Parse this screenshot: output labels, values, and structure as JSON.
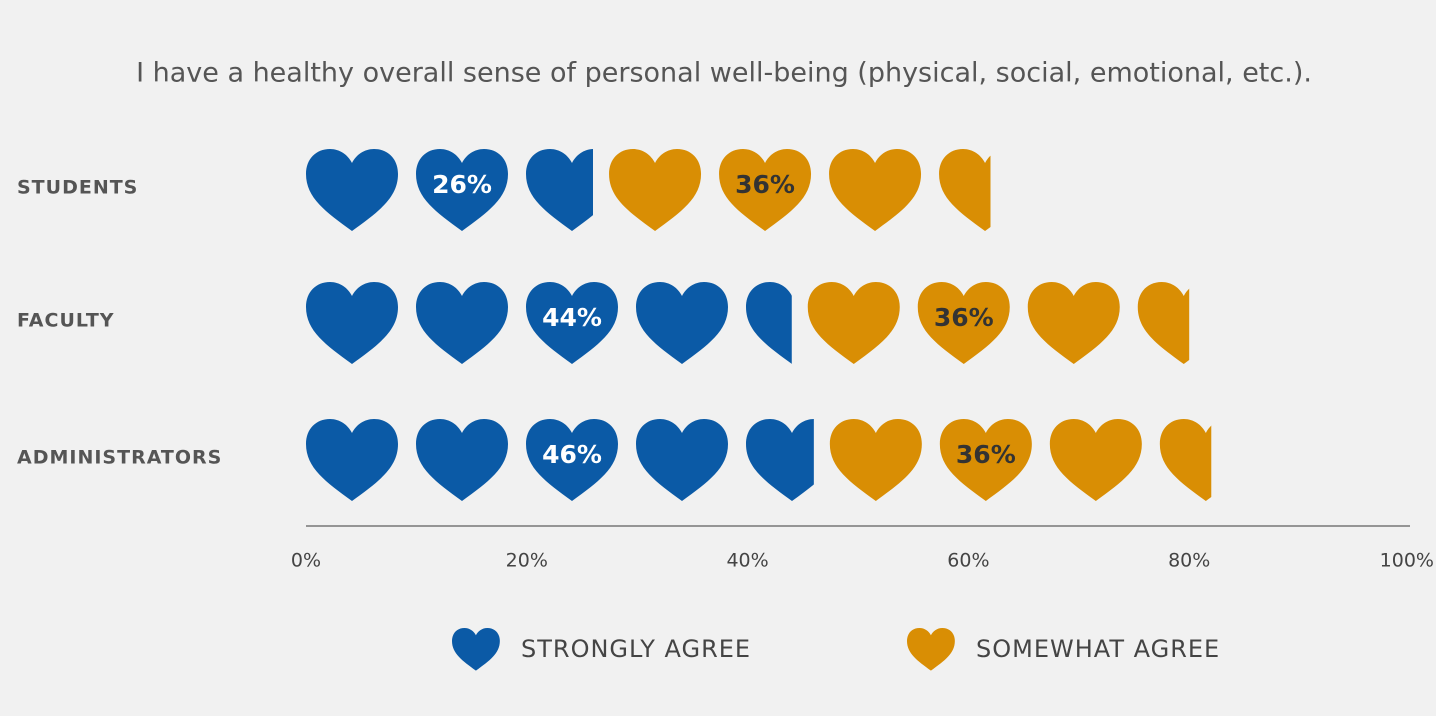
{
  "chart_data": {
    "type": "pictogram-stacked-bar",
    "title": "I have a healthy overall sense of personal well-being (physical, social, emotional, etc.).",
    "categories": [
      "STUDENTS",
      "FACULTY",
      "ADMINISTRATORS"
    ],
    "series": [
      {
        "name": "STRONGLY AGREE",
        "color": "#0b5aa6",
        "label_color": "#ffffff",
        "values": [
          26,
          44,
          46
        ],
        "value_labels": [
          "26%",
          "44%",
          "46%"
        ]
      },
      {
        "name": "SOMEWHAT AGREE",
        "color": "#d98e04",
        "label_color": "#333333",
        "values": [
          36,
          36,
          36
        ],
        "value_labels": [
          "36%",
          "36%",
          "36%"
        ]
      }
    ],
    "xlim": [
      0,
      100
    ],
    "xticks": [
      {
        "value": 0,
        "label": "0%"
      },
      {
        "value": 20,
        "label": "20%"
      },
      {
        "value": 40,
        "label": "40%"
      },
      {
        "value": 60,
        "label": "60%"
      },
      {
        "value": 80,
        "label": "80%"
      },
      {
        "value": 100,
        "label": "100%"
      }
    ],
    "legend": "bottom"
  }
}
